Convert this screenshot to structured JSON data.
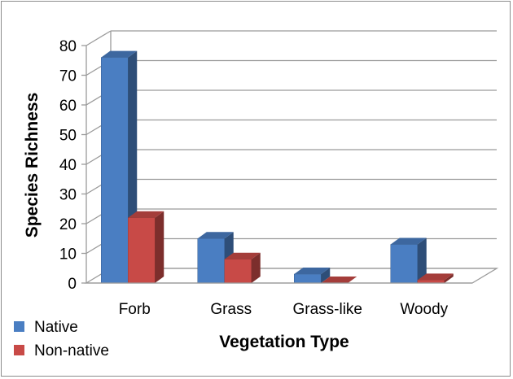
{
  "chart_data": {
    "type": "bar",
    "style": "3d-clustered-column",
    "title": "",
    "categories": [
      "Forb",
      "Grass",
      "Grass-like",
      "Woody"
    ],
    "series": [
      {
        "name": "Native",
        "color": "#4a7ec2",
        "values": [
          76,
          15,
          3,
          13
        ]
      },
      {
        "name": "Non-native",
        "color": "#c84a47",
        "values": [
          22,
          8,
          0,
          1
        ]
      }
    ],
    "xlabel": "Vegetation Type",
    "ylabel": "Species Richness",
    "ylim": [
      0,
      80
    ],
    "yticks": [
      0,
      10,
      20,
      30,
      40,
      50,
      60,
      70,
      80
    ],
    "grid": true,
    "legend_position": "bottom-left"
  }
}
